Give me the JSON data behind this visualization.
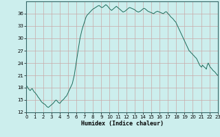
{
  "title": "",
  "xlabel": "Humidex (Indice chaleur)",
  "ylabel": "",
  "xlim": [
    0,
    23
  ],
  "ylim": [
    12,
    39
  ],
  "yticks": [
    12,
    15,
    18,
    21,
    24,
    27,
    30,
    33,
    36
  ],
  "xticks": [
    0,
    1,
    2,
    3,
    4,
    5,
    6,
    7,
    8,
    9,
    10,
    11,
    12,
    13,
    14,
    15,
    16,
    17,
    18,
    19,
    20,
    21,
    22,
    23
  ],
  "bg_color": "#cceeed",
  "grid_color": "#c8a8a8",
  "line_color": "#1a6b5a",
  "values": [
    18.5,
    18.2,
    17.8,
    17.5,
    17.3,
    17.6,
    17.8,
    17.4,
    17.0,
    16.8,
    16.5,
    16.2,
    15.8,
    15.5,
    15.2,
    14.8,
    14.5,
    14.3,
    14.1,
    14.0,
    13.8,
    13.5,
    13.3,
    13.2,
    13.4,
    13.6,
    13.8,
    14.0,
    14.2,
    14.5,
    14.8,
    15.0,
    14.8,
    14.5,
    14.3,
    14.2,
    14.5,
    14.8,
    15.0,
    15.2,
    15.5,
    15.8,
    16.0,
    16.5,
    17.0,
    17.5,
    18.0,
    18.5,
    19.0,
    20.0,
    21.0,
    22.5,
    24.0,
    25.5,
    27.0,
    28.5,
    30.0,
    31.0,
    32.0,
    32.8,
    33.5,
    34.2,
    35.0,
    35.5,
    35.8,
    36.0,
    36.3,
    36.5,
    36.8,
    37.0,
    37.2,
    37.3,
    37.5,
    37.6,
    37.8,
    37.9,
    38.0,
    37.8,
    37.6,
    37.5,
    37.6,
    37.8,
    38.0,
    38.2,
    38.0,
    37.8,
    37.5,
    37.2,
    37.0,
    36.8,
    37.0,
    37.2,
    37.4,
    37.6,
    37.8,
    37.6,
    37.4,
    37.2,
    37.0,
    36.8,
    36.6,
    36.4,
    36.5,
    36.6,
    36.8,
    37.0,
    37.2,
    37.4,
    37.5,
    37.4,
    37.3,
    37.2,
    37.1,
    37.0,
    36.8,
    36.6,
    36.5,
    36.4,
    36.5,
    36.6,
    36.8,
    37.0,
    37.2,
    37.3,
    37.2,
    37.0,
    36.8,
    36.6,
    36.5,
    36.4,
    36.3,
    36.2,
    36.1,
    36.0,
    36.2,
    36.4,
    36.5,
    36.6,
    36.5,
    36.4,
    36.3,
    36.2,
    36.1,
    36.0,
    36.2,
    36.4,
    36.5,
    36.3,
    36.0,
    35.8,
    35.5,
    35.2,
    35.0,
    34.8,
    34.5,
    34.2,
    34.0,
    33.5,
    33.0,
    32.5,
    32.0,
    31.5,
    31.0,
    30.5,
    30.0,
    29.5,
    29.0,
    28.5,
    28.0,
    27.5,
    27.0,
    26.8,
    26.5,
    26.3,
    26.0,
    25.8,
    25.5,
    25.3,
    25.0,
    24.5,
    24.0,
    23.5,
    23.2,
    23.0,
    23.5,
    23.2,
    23.0,
    22.8,
    22.5,
    23.5,
    24.0,
    23.5,
    23.0,
    22.8,
    22.5,
    22.2,
    22.0,
    21.8,
    21.5,
    21.2,
    21.0
  ]
}
